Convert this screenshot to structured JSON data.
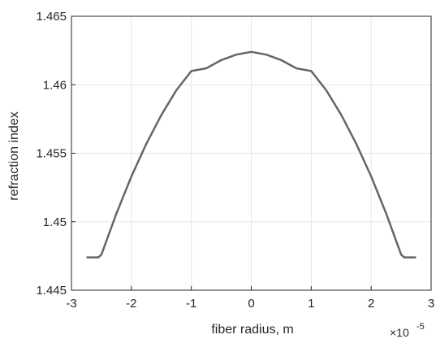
{
  "chart_data": {
    "type": "line",
    "title": "",
    "xlabel": "fiber radius, m",
    "ylabel": "refraction index",
    "x_multiplier": "×10",
    "x_multiplier_exponent": "-5",
    "xlim": [
      -3,
      3
    ],
    "ylim": [
      1.445,
      1.465
    ],
    "x_ticks": [
      "-3",
      "-2",
      "-1",
      "0",
      "1",
      "2",
      "3"
    ],
    "x_tick_values": [
      -3,
      -2,
      -1,
      0,
      1,
      2,
      3
    ],
    "y_ticks": [
      "1.445",
      "1.45",
      "1.455",
      "1.46",
      "1.465"
    ],
    "y_tick_values": [
      1.445,
      1.45,
      1.455,
      1.46,
      1.465
    ],
    "grid": true,
    "series": [
      {
        "color": "#666666",
        "x": [
          -2.75,
          -2.55,
          -2.5,
          -2.25,
          -2.0,
          -1.75,
          -1.5,
          -1.25,
          -1.0,
          -0.75,
          -0.5,
          -0.25,
          0.0,
          0.25,
          0.5,
          0.75,
          1.0,
          1.25,
          1.5,
          1.75,
          2.0,
          2.25,
          2.5,
          2.55,
          2.75
        ],
        "y": [
          1.4474,
          1.4474,
          1.4476,
          1.4506,
          1.4533,
          1.4557,
          1.4578,
          1.4596,
          1.461,
          1.4612,
          1.4618,
          1.4622,
          1.4624,
          1.4622,
          1.4618,
          1.4612,
          1.461,
          1.4596,
          1.4578,
          1.4557,
          1.4533,
          1.4506,
          1.4476,
          1.4474,
          1.4474
        ]
      }
    ]
  }
}
